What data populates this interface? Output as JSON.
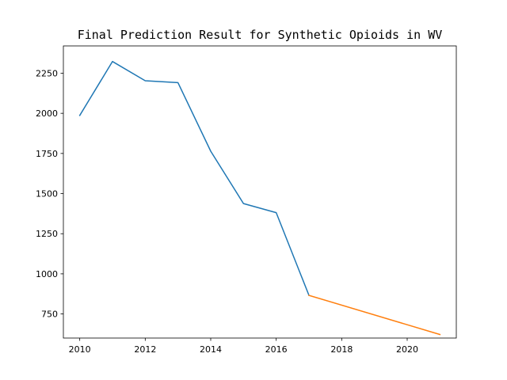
{
  "chart_data": {
    "type": "line",
    "title": "Final Prediction Result for Synthetic Opioids in WV",
    "xlabel": "",
    "ylabel": "",
    "xlim": [
      2009.5,
      2021.5
    ],
    "ylim": [
      600,
      2420
    ],
    "xticks": [
      2010,
      2012,
      2014,
      2016,
      2018,
      2020
    ],
    "yticks": [
      750,
      1000,
      1250,
      1500,
      1750,
      2000,
      2250
    ],
    "grid": false,
    "series": [
      {
        "color": "#1f77b4",
        "x": [
          2010,
          2011,
          2012,
          2013,
          2014,
          2015,
          2016,
          2017
        ],
        "y": [
          1987,
          2323,
          2203,
          2191,
          1764,
          1438,
          1381,
          866
        ]
      },
      {
        "color": "#ff7f0e",
        "x": [
          2017,
          2021
        ],
        "y": [
          866,
          622
        ]
      }
    ]
  }
}
